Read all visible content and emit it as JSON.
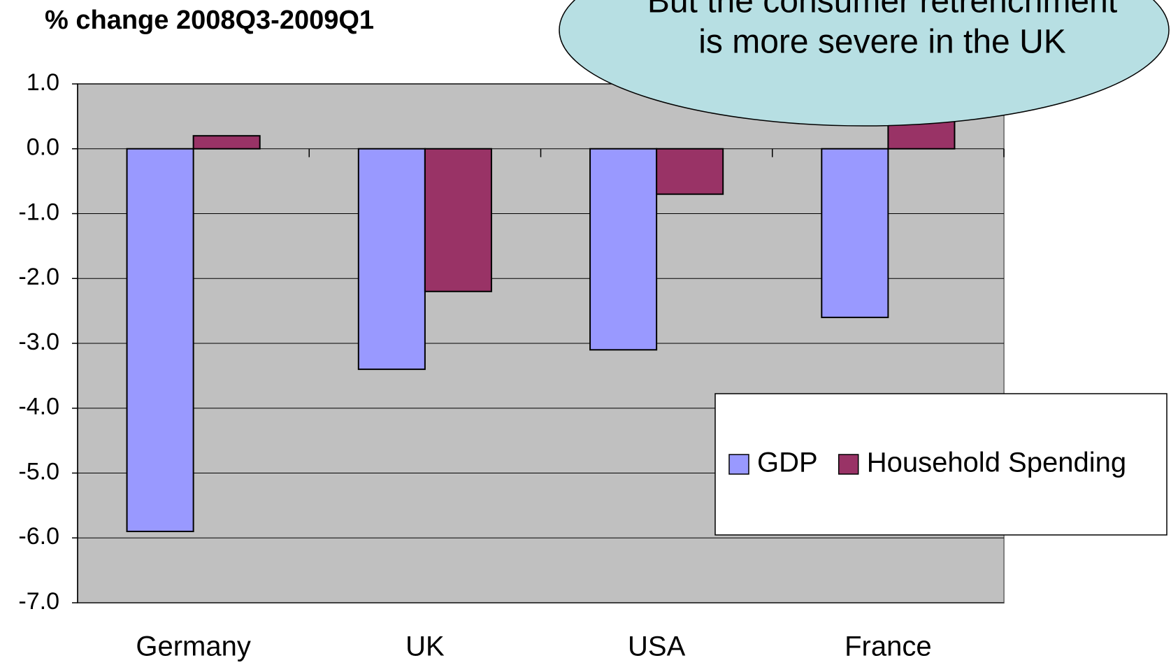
{
  "chart_data": {
    "type": "bar",
    "title": "% change 2008Q3-2009Q1",
    "annotation": [
      "But the consumer retrenchment",
      "is more severe in the UK"
    ],
    "categories": [
      "Germany",
      "UK",
      "USA",
      "France"
    ],
    "series": [
      {
        "name": "GDP",
        "color": "#9999ff",
        "values": [
          -5.9,
          -3.4,
          -3.1,
          -2.6
        ]
      },
      {
        "name": "Household Spending",
        "color": "#993366",
        "values": [
          0.2,
          -2.2,
          -0.7,
          0.5
        ]
      }
    ],
    "ylim": [
      -7,
      1
    ],
    "yticks": [
      {
        "value": 1,
        "label": "1.0"
      },
      {
        "value": 0,
        "label": "0.0"
      },
      {
        "value": -1,
        "label": "-1.0"
      },
      {
        "value": -2,
        "label": "-2.0"
      },
      {
        "value": -3,
        "label": "-3.0"
      },
      {
        "value": -4,
        "label": "-4.0"
      },
      {
        "value": -5,
        "label": "-5.0"
      },
      {
        "value": -6,
        "label": "-6.0"
      },
      {
        "value": -7,
        "label": "-7.0"
      }
    ],
    "grid": true,
    "legend": "right"
  }
}
